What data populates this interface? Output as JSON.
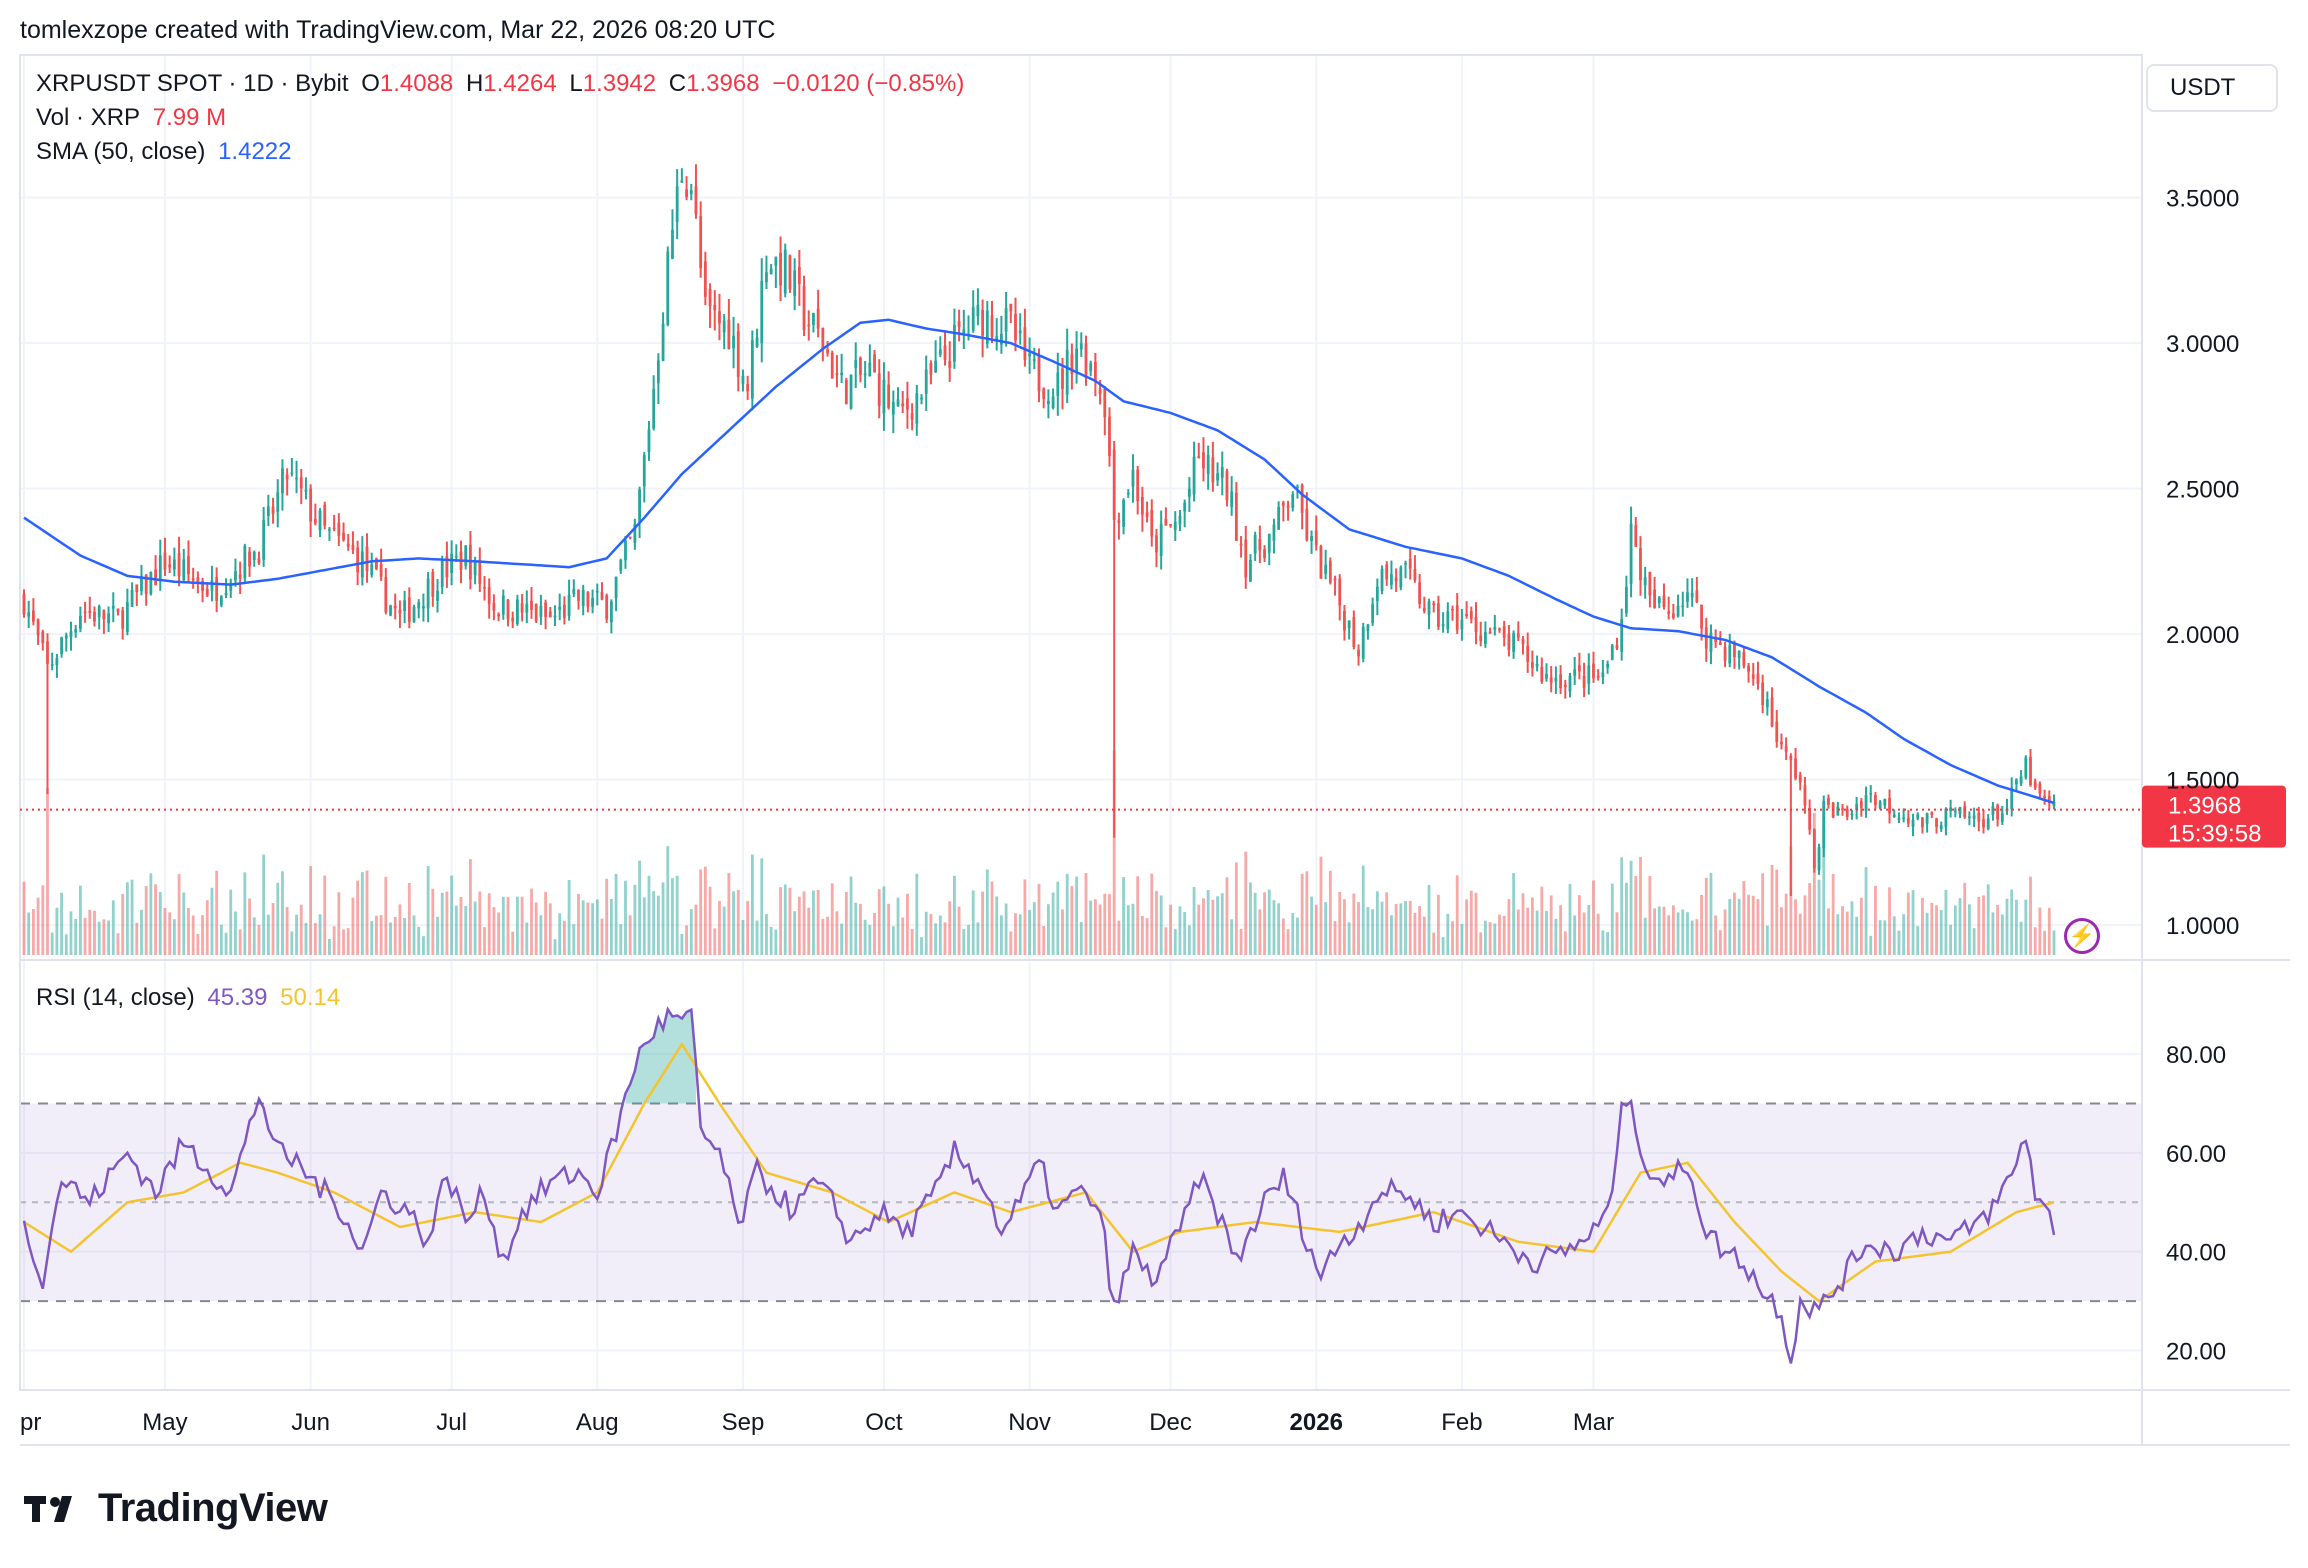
{
  "caption": "tomlexzope created with TradingView.com, Mar 22, 2026 08:20 UTC",
  "legend": {
    "symbol": "XRPUSDT SPOT · 1D · Bybit",
    "o_label": "O",
    "o_value": "1.4088",
    "h_label": "H",
    "h_value": "1.4264",
    "l_label": "L",
    "l_value": "1.3942",
    "c_label": "C",
    "c_value": "1.3968",
    "change": "−0.0120 (−0.85%)",
    "vol_label": "Vol · XRP",
    "vol_value": "7.99 M",
    "sma_label": "SMA (50, close)",
    "sma_value": "1.4222",
    "rsi_label": "RSI (14, close)",
    "rsi_value": "45.39",
    "rsi_ma_value": "50.14"
  },
  "currency": "USDT",
  "brand": "TradingView",
  "colors": {
    "up": "#26a69a",
    "down": "#ef5350",
    "sma": "#2962ff",
    "rsi": "#7e57c2",
    "rsi_ma": "#f4c430",
    "price_line": "#f23645"
  },
  "chart_data": {
    "type": "candlestick",
    "price_axis": {
      "min": 0.88,
      "max": 3.99,
      "ticks": [
        "3.5000",
        "3.0000",
        "2.5000",
        "2.0000",
        "1.5000",
        "1.0000"
      ]
    },
    "rsi_axis": {
      "min": 12,
      "max": 95,
      "ticks": [
        "80.00",
        "60.00",
        "40.00",
        "20.00"
      ],
      "upper_band": 70,
      "mid_band": 50,
      "lower_band": 30
    },
    "x_labels": [
      "Apr",
      "May",
      "Jun",
      "Jul",
      "Aug",
      "Sep",
      "Oct",
      "Nov",
      "Dec",
      "2026",
      "Feb",
      "Mar"
    ],
    "last_price": {
      "value": "1.3968",
      "countdown": "15:39:58"
    },
    "close_anchors": [
      [
        0,
        2.12
      ],
      [
        5,
        1.88
      ],
      [
        12,
        2.08
      ],
      [
        20,
        2.05
      ],
      [
        30,
        2.25
      ],
      [
        40,
        2.15
      ],
      [
        50,
        2.3
      ],
      [
        56,
        2.55
      ],
      [
        64,
        2.35
      ],
      [
        72,
        2.25
      ],
      [
        80,
        2.05
      ],
      [
        88,
        2.2
      ],
      [
        94,
        2.27
      ],
      [
        100,
        2.1
      ],
      [
        106,
        2.08
      ],
      [
        112,
        2.05
      ],
      [
        118,
        2.12
      ],
      [
        124,
        2.1
      ],
      [
        130,
        2.35
      ],
      [
        134,
        2.85
      ],
      [
        138,
        3.4
      ],
      [
        140,
        3.6
      ],
      [
        142,
        3.55
      ],
      [
        145,
        3.1
      ],
      [
        150,
        3.05
      ],
      [
        154,
        2.85
      ],
      [
        158,
        3.3
      ],
      [
        162,
        3.25
      ],
      [
        166,
        3.1
      ],
      [
        170,
        3.0
      ],
      [
        174,
        2.85
      ],
      [
        180,
        2.9
      ],
      [
        186,
        2.75
      ],
      [
        192,
        2.85
      ],
      [
        198,
        3.0
      ],
      [
        204,
        3.1
      ],
      [
        210,
        3.05
      ],
      [
        214,
        2.9
      ],
      [
        220,
        2.85
      ],
      [
        224,
        3.0
      ],
      [
        228,
        2.9
      ],
      [
        230,
        2.8
      ],
      [
        232,
        2.4
      ],
      [
        236,
        2.55
      ],
      [
        240,
        2.3
      ],
      [
        246,
        2.4
      ],
      [
        250,
        2.6
      ],
      [
        256,
        2.5
      ],
      [
        260,
        2.25
      ],
      [
        266,
        2.35
      ],
      [
        270,
        2.5
      ],
      [
        274,
        2.3
      ],
      [
        280,
        2.1
      ],
      [
        284,
        1.95
      ],
      [
        288,
        2.2
      ],
      [
        294,
        2.2
      ],
      [
        300,
        2.05
      ],
      [
        306,
        2.05
      ],
      [
        312,
        2.0
      ],
      [
        318,
        1.95
      ],
      [
        324,
        1.85
      ],
      [
        330,
        1.85
      ],
      [
        336,
        1.85
      ],
      [
        340,
        2.05
      ],
      [
        342,
        2.35
      ],
      [
        346,
        2.1
      ],
      [
        350,
        2.08
      ],
      [
        354,
        2.15
      ],
      [
        358,
        2.0
      ],
      [
        362,
        1.95
      ],
      [
        366,
        1.9
      ],
      [
        370,
        1.8
      ],
      [
        374,
        1.6
      ],
      [
        378,
        1.5
      ],
      [
        381,
        1.2
      ],
      [
        383,
        1.4
      ],
      [
        388,
        1.38
      ],
      [
        392,
        1.45
      ],
      [
        398,
        1.4
      ],
      [
        404,
        1.35
      ],
      [
        410,
        1.38
      ],
      [
        416,
        1.36
      ],
      [
        422,
        1.4
      ],
      [
        426,
        1.55
      ],
      [
        428,
        1.45
      ],
      [
        432,
        1.3968
      ]
    ],
    "rsi_anchors": [
      [
        0,
        45
      ],
      [
        4,
        35
      ],
      [
        8,
        55
      ],
      [
        14,
        50
      ],
      [
        22,
        60
      ],
      [
        28,
        52
      ],
      [
        34,
        62
      ],
      [
        38,
        58
      ],
      [
        44,
        52
      ],
      [
        48,
        65
      ],
      [
        50,
        72
      ],
      [
        54,
        60
      ],
      [
        58,
        58
      ],
      [
        64,
        52
      ],
      [
        68,
        48
      ],
      [
        72,
        40
      ],
      [
        76,
        52
      ],
      [
        82,
        48
      ],
      [
        86,
        42
      ],
      [
        90,
        56
      ],
      [
        94,
        46
      ],
      [
        98,
        52
      ],
      [
        102,
        38
      ],
      [
        106,
        48
      ],
      [
        112,
        54
      ],
      [
        118,
        56
      ],
      [
        122,
        52
      ],
      [
        126,
        64
      ],
      [
        130,
        78
      ],
      [
        134,
        85
      ],
      [
        138,
        88
      ],
      [
        140,
        86
      ],
      [
        142,
        88
      ],
      [
        144,
        64
      ],
      [
        148,
        60
      ],
      [
        152,
        45
      ],
      [
        156,
        56
      ],
      [
        160,
        52
      ],
      [
        164,
        48
      ],
      [
        168,
        54
      ],
      [
        172,
        50
      ],
      [
        176,
        42
      ],
      [
        182,
        48
      ],
      [
        188,
        44
      ],
      [
        194,
        52
      ],
      [
        198,
        60
      ],
      [
        204,
        54
      ],
      [
        208,
        44
      ],
      [
        212,
        50
      ],
      [
        216,
        58
      ],
      [
        220,
        48
      ],
      [
        224,
        52
      ],
      [
        228,
        50
      ],
      [
        230,
        42
      ],
      [
        232,
        28
      ],
      [
        236,
        40
      ],
      [
        240,
        34
      ],
      [
        246,
        44
      ],
      [
        250,
        55
      ],
      [
        254,
        48
      ],
      [
        258,
        38
      ],
      [
        264,
        50
      ],
      [
        268,
        55
      ],
      [
        272,
        45
      ],
      [
        276,
        35
      ],
      [
        280,
        42
      ],
      [
        284,
        45
      ],
      [
        288,
        52
      ],
      [
        294,
        52
      ],
      [
        300,
        46
      ],
      [
        306,
        48
      ],
      [
        312,
        44
      ],
      [
        318,
        40
      ],
      [
        322,
        38
      ],
      [
        328,
        40
      ],
      [
        334,
        44
      ],
      [
        338,
        50
      ],
      [
        340,
        72
      ],
      [
        342,
        68
      ],
      [
        346,
        56
      ],
      [
        350,
        54
      ],
      [
        354,
        58
      ],
      [
        358,
        44
      ],
      [
        362,
        40
      ],
      [
        366,
        38
      ],
      [
        370,
        32
      ],
      [
        374,
        28
      ],
      [
        376,
        18
      ],
      [
        378,
        30
      ],
      [
        382,
        28
      ],
      [
        388,
        36
      ],
      [
        392,
        42
      ],
      [
        398,
        40
      ],
      [
        404,
        44
      ],
      [
        410,
        42
      ],
      [
        416,
        46
      ],
      [
        420,
        50
      ],
      [
        424,
        58
      ],
      [
        426,
        64
      ],
      [
        428,
        52
      ],
      [
        432,
        45
      ]
    ],
    "rsi_ma_anchors": [
      [
        0,
        46
      ],
      [
        10,
        40
      ],
      [
        22,
        50
      ],
      [
        34,
        52
      ],
      [
        46,
        58
      ],
      [
        54,
        56
      ],
      [
        66,
        52
      ],
      [
        80,
        45
      ],
      [
        96,
        48
      ],
      [
        110,
        46
      ],
      [
        122,
        52
      ],
      [
        132,
        70
      ],
      [
        140,
        82
      ],
      [
        148,
        70
      ],
      [
        158,
        56
      ],
      [
        172,
        52
      ],
      [
        184,
        46
      ],
      [
        198,
        52
      ],
      [
        210,
        48
      ],
      [
        226,
        52
      ],
      [
        236,
        40
      ],
      [
        246,
        44
      ],
      [
        262,
        46
      ],
      [
        280,
        44
      ],
      [
        300,
        48
      ],
      [
        318,
        42
      ],
      [
        334,
        40
      ],
      [
        344,
        56
      ],
      [
        354,
        58
      ],
      [
        364,
        46
      ],
      [
        374,
        36
      ],
      [
        382,
        30
      ],
      [
        394,
        38
      ],
      [
        410,
        40
      ],
      [
        424,
        48
      ],
      [
        432,
        50
      ]
    ],
    "sma_anchors": [
      [
        0,
        2.4
      ],
      [
        12,
        2.27
      ],
      [
        22,
        2.2
      ],
      [
        32,
        2.18
      ],
      [
        44,
        2.17
      ],
      [
        54,
        2.19
      ],
      [
        64,
        2.22
      ],
      [
        74,
        2.25
      ],
      [
        84,
        2.26
      ],
      [
        96,
        2.25
      ],
      [
        106,
        2.24
      ],
      [
        116,
        2.23
      ],
      [
        124,
        2.26
      ],
      [
        132,
        2.4
      ],
      [
        140,
        2.55
      ],
      [
        150,
        2.7
      ],
      [
        160,
        2.85
      ],
      [
        170,
        2.98
      ],
      [
        178,
        3.07
      ],
      [
        184,
        3.08
      ],
      [
        192,
        3.05
      ],
      [
        200,
        3.03
      ],
      [
        210,
        3.0
      ],
      [
        220,
        2.93
      ],
      [
        228,
        2.87
      ],
      [
        234,
        2.8
      ],
      [
        244,
        2.76
      ],
      [
        254,
        2.7
      ],
      [
        264,
        2.6
      ],
      [
        272,
        2.48
      ],
      [
        282,
        2.36
      ],
      [
        294,
        2.3
      ],
      [
        306,
        2.26
      ],
      [
        316,
        2.2
      ],
      [
        326,
        2.12
      ],
      [
        334,
        2.06
      ],
      [
        342,
        2.02
      ],
      [
        352,
        2.01
      ],
      [
        362,
        1.98
      ],
      [
        372,
        1.92
      ],
      [
        382,
        1.82
      ],
      [
        392,
        1.73
      ],
      [
        400,
        1.64
      ],
      [
        410,
        1.55
      ],
      [
        420,
        1.48
      ],
      [
        432,
        1.42
      ]
    ]
  }
}
